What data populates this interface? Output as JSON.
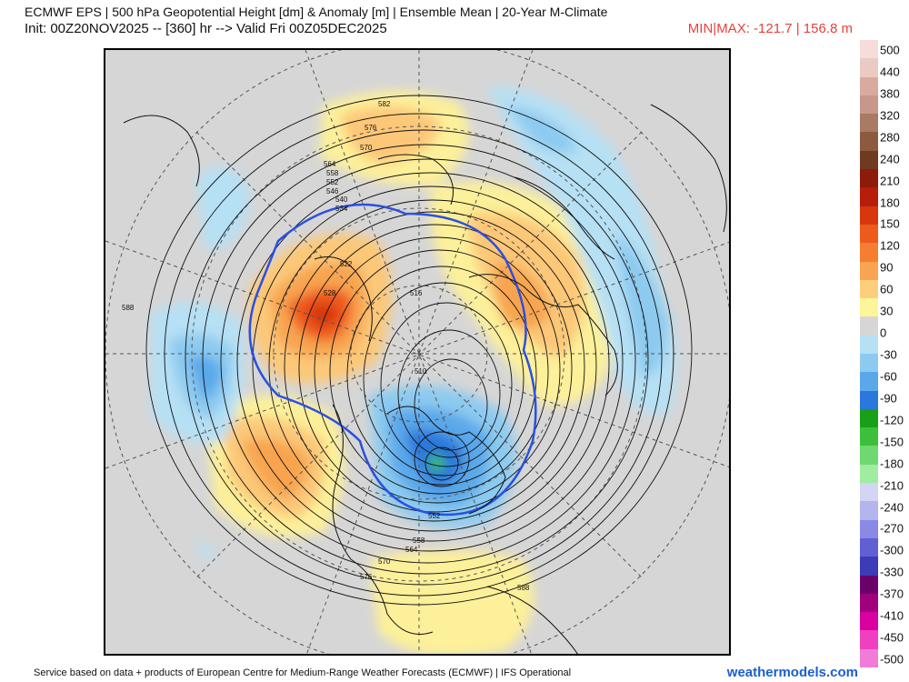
{
  "header": {
    "title_line1": "ECMWF EPS | 500 hPa Geopotential Height [dm] & Anomaly [m] | Ensemble Mean | 20-Year M-Climate",
    "title_line2": "Init: 00Z20NOV2025 -- [360] hr --> Valid Fri 00Z05DEC2025",
    "minmax": "MIN|MAX: -121.7 | 156.8 m",
    "minmax_color": "#e8413c"
  },
  "footer": {
    "credit": "Service based on data + products of European Centre for Medium-Range Weather Forecasts (ECMWF) | IFS Operational",
    "brand": "weathermodels.com",
    "brand_color": "#1a5fd0"
  },
  "legend": {
    "labels": [
      "500",
      "440",
      "380",
      "320",
      "280",
      "240",
      "210",
      "180",
      "150",
      "120",
      "90",
      "60",
      "30",
      "0",
      "-30",
      "-60",
      "-90",
      "-120",
      "-150",
      "-180",
      "-210",
      "-240",
      "-270",
      "-300",
      "-330",
      "-370",
      "-410",
      "-450",
      "-500"
    ],
    "colors": [
      "#f7dcdc",
      "#eccac4",
      "#d9ab9f",
      "#c8968a",
      "#a97a64",
      "#8c5a3c",
      "#6e3a20",
      "#8e1a0a",
      "#b81c0a",
      "#d8360e",
      "#ee5a1c",
      "#f47e32",
      "#f8a450",
      "#fccf7c",
      "#fdf59a",
      "#d6d6d6",
      "#b6e0f4",
      "#8ccaf0",
      "#5aa8ea",
      "#2a78dc",
      "#18a018",
      "#3cc03c",
      "#70d870",
      "#a0eca0",
      "#d4d4f4",
      "#b4b4ee",
      "#8a8ae4",
      "#6060d4",
      "#3c3cb8",
      "#6a006a",
      "#a0007c",
      "#d800a0",
      "#f040c0",
      "#f07cd8"
    ],
    "legend_shown_top": "500",
    "legend_shown_bottom": "-500"
  },
  "map_labels": {
    "contours": [
      "582",
      "576",
      "570",
      "564",
      "558",
      "552",
      "546",
      "540",
      "534",
      "522",
      "528",
      "516",
      "510",
      "588",
      "588",
      "576",
      "570",
      "564",
      "558",
      "552"
    ]
  }
}
